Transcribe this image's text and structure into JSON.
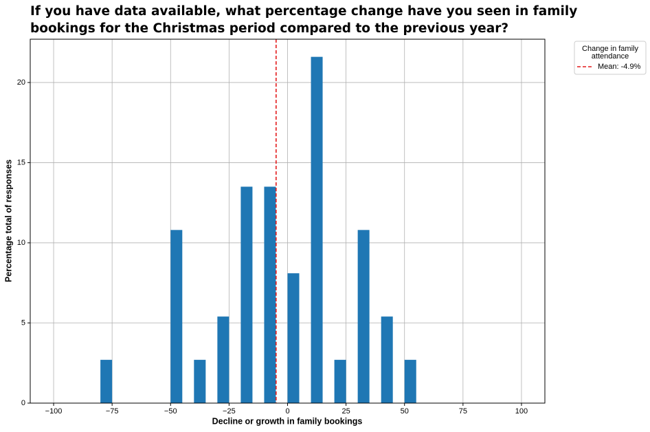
{
  "chart_data": {
    "type": "histogram",
    "title": "If you have data available, what percentage change have you seen in family bookings for the Christmas period compared to the previous year?",
    "x_label": "Decline or growth in family bookings",
    "y_label": "Percentage total of responses",
    "bins": [
      -80,
      -75,
      -70,
      -65,
      -60,
      -55,
      -50,
      -45,
      -40,
      -35,
      -30,
      -25,
      -20,
      -15,
      -10,
      -5,
      0,
      5,
      10,
      15,
      20,
      25,
      30,
      35,
      40,
      45,
      50,
      55
    ],
    "values": [
      2.7,
      0,
      0,
      0,
      0,
      0,
      10.8,
      0,
      2.7,
      0,
      5.4,
      0,
      13.5,
      0,
      13.5,
      0,
      8.1,
      0,
      21.6,
      0,
      2.7,
      0,
      10.8,
      0,
      5.4,
      0,
      2.7
    ],
    "color": "#1f77b4",
    "mean": {
      "value": -4.9,
      "label": "Mean: -4.9%",
      "color": "#e41a1c"
    },
    "legend_title": "Change in family attendance",
    "legend_position": "outside-upper-right",
    "xlim": [
      -110,
      110
    ],
    "ylim": [
      0,
      22.7
    ],
    "xticks": [
      {
        "value": -100,
        "label": "−100"
      },
      {
        "value": -75,
        "label": "−75"
      },
      {
        "value": -50,
        "label": "−50"
      },
      {
        "value": -25,
        "label": "−25"
      },
      0,
      25,
      50,
      75,
      100
    ],
    "yticks": [
      0,
      5,
      10,
      15,
      20
    ],
    "grid": true
  }
}
